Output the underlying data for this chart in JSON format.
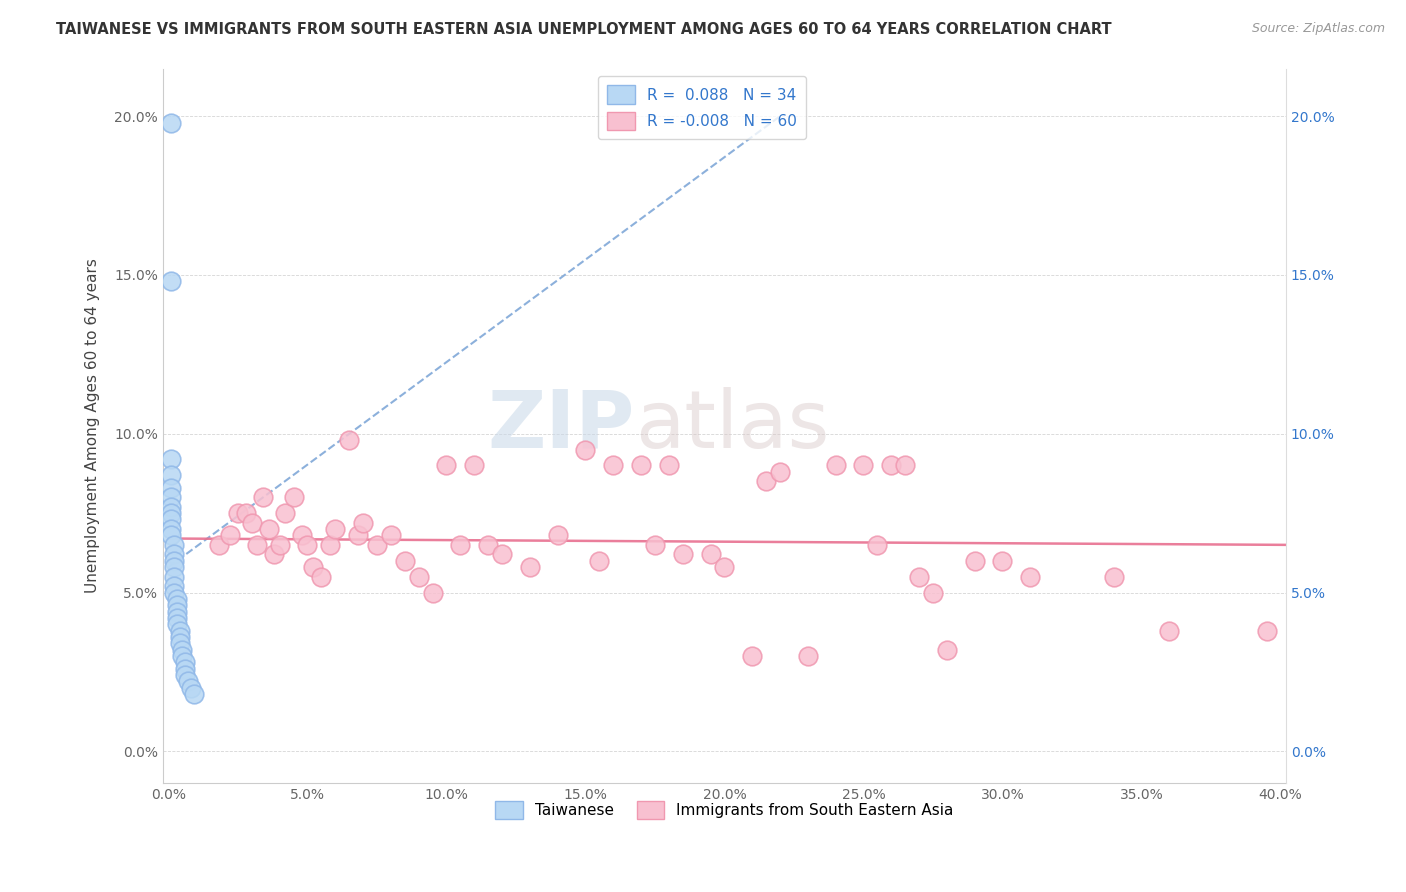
{
  "title": "TAIWANESE VS IMMIGRANTS FROM SOUTH EASTERN ASIA UNEMPLOYMENT AMONG AGES 60 TO 64 YEARS CORRELATION CHART",
  "source": "Source: ZipAtlas.com",
  "ylabel": "Unemployment Among Ages 60 to 64 years",
  "xlabel": "",
  "xlim": [
    -0.002,
    0.402
  ],
  "ylim": [
    -0.01,
    0.215
  ],
  "xticks": [
    0.0,
    0.05,
    0.1,
    0.15,
    0.2,
    0.25,
    0.3,
    0.35,
    0.4
  ],
  "yticks_left": [
    0.0,
    0.05,
    0.1,
    0.15,
    0.2
  ],
  "yticks_right": [
    0.0,
    0.05,
    0.1,
    0.15,
    0.2
  ],
  "watermark_zip": "ZIP",
  "watermark_atlas": "atlas",
  "blue_R": 0.088,
  "blue_N": 34,
  "pink_R": -0.008,
  "pink_N": 60,
  "blue_color": "#b8d8f4",
  "blue_edge": "#90b8e8",
  "pink_color": "#f8c0d0",
  "pink_edge": "#f098b0",
  "blue_line_color": "#80a8d8",
  "pink_line_color": "#e87090",
  "legend_R_color": "#3377cc",
  "blue_points_x": [
    0.001,
    0.001,
    0.001,
    0.001,
    0.001,
    0.001,
    0.001,
    0.001,
    0.001,
    0.001,
    0.001,
    0.002,
    0.002,
    0.002,
    0.002,
    0.002,
    0.002,
    0.002,
    0.003,
    0.003,
    0.003,
    0.003,
    0.003,
    0.004,
    0.004,
    0.004,
    0.005,
    0.005,
    0.006,
    0.006,
    0.006,
    0.007,
    0.008,
    0.009
  ],
  "blue_points_y": [
    0.198,
    0.148,
    0.092,
    0.087,
    0.083,
    0.08,
    0.077,
    0.075,
    0.073,
    0.07,
    0.068,
    0.065,
    0.062,
    0.06,
    0.058,
    0.055,
    0.052,
    0.05,
    0.048,
    0.046,
    0.044,
    0.042,
    0.04,
    0.038,
    0.036,
    0.034,
    0.032,
    0.03,
    0.028,
    0.026,
    0.024,
    0.022,
    0.02,
    0.018
  ],
  "pink_points_x": [
    0.018,
    0.022,
    0.025,
    0.028,
    0.03,
    0.032,
    0.034,
    0.036,
    0.038,
    0.04,
    0.042,
    0.045,
    0.048,
    0.05,
    0.052,
    0.055,
    0.058,
    0.06,
    0.065,
    0.068,
    0.07,
    0.075,
    0.08,
    0.085,
    0.09,
    0.095,
    0.1,
    0.105,
    0.11,
    0.115,
    0.12,
    0.13,
    0.14,
    0.15,
    0.155,
    0.16,
    0.17,
    0.175,
    0.18,
    0.185,
    0.195,
    0.2,
    0.21,
    0.215,
    0.22,
    0.23,
    0.24,
    0.25,
    0.255,
    0.26,
    0.265,
    0.27,
    0.275,
    0.28,
    0.29,
    0.3,
    0.31,
    0.34,
    0.36,
    0.395
  ],
  "pink_points_y": [
    0.065,
    0.068,
    0.075,
    0.075,
    0.072,
    0.065,
    0.08,
    0.07,
    0.062,
    0.065,
    0.075,
    0.08,
    0.068,
    0.065,
    0.058,
    0.055,
    0.065,
    0.07,
    0.098,
    0.068,
    0.072,
    0.065,
    0.068,
    0.06,
    0.055,
    0.05,
    0.09,
    0.065,
    0.09,
    0.065,
    0.062,
    0.058,
    0.068,
    0.095,
    0.06,
    0.09,
    0.09,
    0.065,
    0.09,
    0.062,
    0.062,
    0.058,
    0.03,
    0.085,
    0.088,
    0.03,
    0.09,
    0.09,
    0.065,
    0.09,
    0.09,
    0.055,
    0.05,
    0.032,
    0.06,
    0.06,
    0.055,
    0.055,
    0.038,
    0.038
  ],
  "blue_line_x": [
    0.0,
    0.22
  ],
  "blue_line_y": [
    0.058,
    0.2
  ],
  "pink_line_x": [
    0.0,
    0.402
  ],
  "pink_line_y": [
    0.067,
    0.065
  ]
}
